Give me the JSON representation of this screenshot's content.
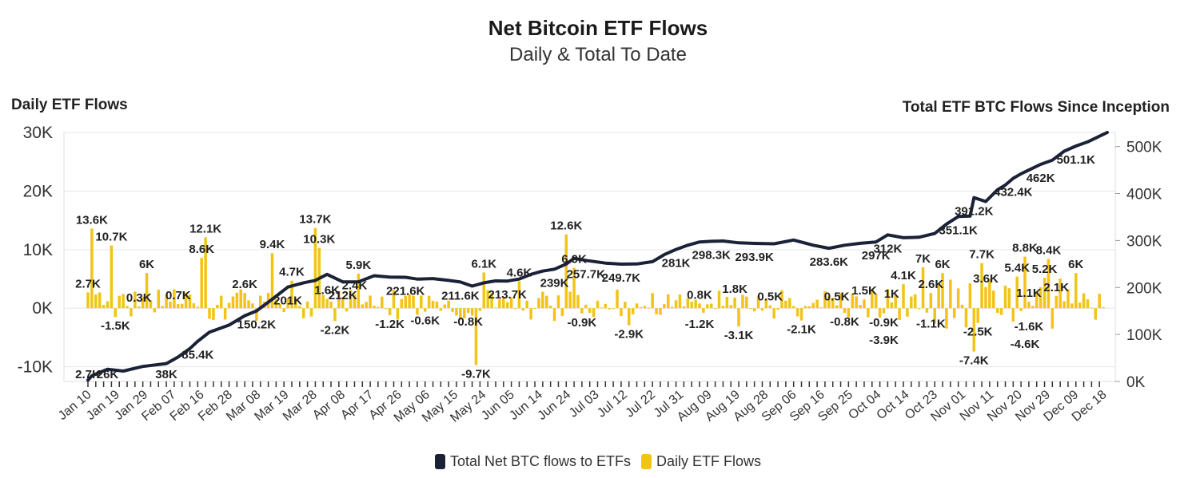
{
  "chart_data": {
    "type": "bar+line",
    "title": "Net Bitcoin ETF Flows",
    "subtitle": "Daily & Total To Date",
    "ylabel_left": "Daily ETF Flows",
    "ylabel_right": "Total ETF BTC Flows Since Inception",
    "y_left_ticks": [
      "30K",
      "20K",
      "10K",
      "0K",
      "-10K"
    ],
    "y_left_values": [
      30000,
      20000,
      10000,
      0,
      -10000
    ],
    "ylim_left": [
      -12500,
      30000
    ],
    "y_right_ticks": [
      "500K",
      "400K",
      "300K",
      "200K",
      "100K",
      "0K"
    ],
    "y_right_values": [
      500000,
      400000,
      300000,
      200000,
      100000,
      0
    ],
    "ylim_right": [
      0,
      530000
    ],
    "x_ticks": [
      "Jan 10",
      "Jan 19",
      "Jan 29",
      "Feb 07",
      "Feb 16",
      "Feb 28",
      "Mar 08",
      "Mar 19",
      "Mar 28",
      "Apr 08",
      "Apr 17",
      "Apr 26",
      "May 06",
      "May 15",
      "May 24",
      "Jun 05",
      "Jun 14",
      "Jun 24",
      "Jul 03",
      "Jul 12",
      "Jul 22",
      "Jul 31",
      "Aug 09",
      "Aug 19",
      "Aug 28",
      "Sep 06",
      "Sep 16",
      "Sep 25",
      "Oct 04",
      "Oct 14",
      "Oct 23",
      "Nov 01",
      "Nov 11",
      "Nov 20",
      "Nov 29",
      "Dec 09",
      "Dec 18"
    ],
    "n_days": 240,
    "series": [
      {
        "name": "Total Net BTC flows to ETFs",
        "color": "#1b2237",
        "axis": "right",
        "points": [
          [
            0,
            2700
          ],
          [
            1,
            12000
          ],
          [
            5,
            26000
          ],
          [
            9,
            22000
          ],
          [
            14,
            32000
          ],
          [
            20,
            38000
          ],
          [
            23,
            52000
          ],
          [
            26,
            70000
          ],
          [
            28,
            85400
          ],
          [
            31,
            105000
          ],
          [
            36,
            120000
          ],
          [
            40,
            140000
          ],
          [
            43,
            150200
          ],
          [
            47,
            175000
          ],
          [
            51,
            201000
          ],
          [
            55,
            210000
          ],
          [
            58,
            215000
          ],
          [
            61,
            228000
          ],
          [
            65,
            212000
          ],
          [
            69,
            212000
          ],
          [
            73,
            225000
          ],
          [
            77,
            222000
          ],
          [
            81,
            221600
          ],
          [
            84,
            218000
          ],
          [
            88,
            219000
          ],
          [
            92,
            215000
          ],
          [
            95,
            211600
          ],
          [
            98,
            203000
          ],
          [
            101,
            210000
          ],
          [
            104,
            214000
          ],
          [
            107,
            213700
          ],
          [
            110,
            218000
          ],
          [
            113,
            228000
          ],
          [
            116,
            235000
          ],
          [
            119,
            239000
          ],
          [
            122,
            250000
          ],
          [
            124,
            262000
          ],
          [
            127,
            257700
          ],
          [
            132,
            252000
          ],
          [
            136,
            249700
          ],
          [
            140,
            250000
          ],
          [
            144,
            255000
          ],
          [
            147,
            270000
          ],
          [
            150,
            281000
          ],
          [
            153,
            290000
          ],
          [
            156,
            297000
          ],
          [
            159,
            298300
          ],
          [
            162,
            299000
          ],
          [
            166,
            295000
          ],
          [
            170,
            293900
          ],
          [
            175,
            293000
          ],
          [
            180,
            301000
          ],
          [
            185,
            290000
          ],
          [
            189,
            283600
          ],
          [
            193,
            290000
          ],
          [
            197,
            294000
          ],
          [
            201,
            297000
          ],
          [
            204,
            312000
          ],
          [
            208,
            306000
          ],
          [
            212,
            307000
          ],
          [
            216,
            315000
          ],
          [
            219,
            335000
          ],
          [
            222,
            351100
          ],
          [
            225,
            352000
          ],
          [
            226,
            391200
          ],
          [
            229,
            383000
          ],
          [
            232,
            408000
          ],
          [
            234,
            418000
          ],
          [
            236,
            432400
          ],
          [
            238,
            442000
          ],
          [
            240,
            450000
          ],
          [
            243,
            462000
          ],
          [
            246,
            471000
          ],
          [
            249,
            490000
          ],
          [
            252,
            501100
          ],
          [
            255,
            510000
          ],
          [
            258,
            522000
          ],
          [
            260,
            530000
          ]
        ],
        "labels": [
          {
            "text": "2.7K",
            "i": 0
          },
          {
            "text": "26K",
            "i": 5
          },
          {
            "text": "38K",
            "i": 20
          },
          {
            "text": "85.4K",
            "i": 28
          },
          {
            "text": "150.2K",
            "i": 43
          },
          {
            "text": "201K",
            "i": 51
          },
          {
            "text": "212K",
            "i": 65
          },
          {
            "text": "221.6K",
            "i": 81
          },
          {
            "text": "211.6K",
            "i": 95
          },
          {
            "text": "213.7K",
            "i": 107
          },
          {
            "text": "239K",
            "i": 119
          },
          {
            "text": "257.7K",
            "i": 127
          },
          {
            "text": "249.7K",
            "i": 136
          },
          {
            "text": "281K",
            "i": 150
          },
          {
            "text": "298.3K",
            "i": 159
          },
          {
            "text": "293.9K",
            "i": 170
          },
          {
            "text": "283.6K",
            "i": 189
          },
          {
            "text": "297K",
            "i": 201
          },
          {
            "text": "312K",
            "i": 204
          },
          {
            "text": "351.1K",
            "i": 222
          },
          {
            "text": "391.2K",
            "i": 226
          },
          {
            "text": "432.4K",
            "i": 236
          },
          {
            "text": "462K",
            "i": 243
          },
          {
            "text": "501.1K",
            "i": 252
          }
        ]
      },
      {
        "name": "Daily ETF Flows",
        "color": "#f2c418",
        "axis": "left",
        "labels": [
          {
            "text": "2.7K",
            "value": 2700,
            "i": 0
          },
          {
            "text": "13.6K",
            "value": 13600,
            "i": 1
          },
          {
            "text": "10.7K",
            "value": 10700,
            "i": 6
          },
          {
            "text": "-1.5K",
            "value": -1500,
            "i": 7
          },
          {
            "text": "6K",
            "value": 6000,
            "i": 15
          },
          {
            "text": "0.3K",
            "value": 300,
            "i": 13
          },
          {
            "text": "0.7K",
            "value": 700,
            "i": 23
          },
          {
            "text": "8.6K",
            "value": 8600,
            "i": 29
          },
          {
            "text": "12.1K",
            "value": 12100,
            "i": 30
          },
          {
            "text": "2.6K",
            "value": 2600,
            "i": 40
          },
          {
            "text": "9.4K",
            "value": 9400,
            "i": 47
          },
          {
            "text": "4.7K",
            "value": 4700,
            "i": 52
          },
          {
            "text": "13.7K",
            "value": 13700,
            "i": 58
          },
          {
            "text": "10.3K",
            "value": 10300,
            "i": 59
          },
          {
            "text": "1.6K",
            "value": 1600,
            "i": 61
          },
          {
            "text": "-2.2K",
            "value": -2200,
            "i": 63
          },
          {
            "text": "5.9K",
            "value": 5900,
            "i": 69
          },
          {
            "text": "2.4K",
            "value": 2400,
            "i": 68
          },
          {
            "text": "-1.2K",
            "value": -1200,
            "i": 77
          },
          {
            "text": "-0.6K",
            "value": -600,
            "i": 86
          },
          {
            "text": "-0.8K",
            "value": -800,
            "i": 97
          },
          {
            "text": "-9.7K",
            "value": -9700,
            "i": 99
          },
          {
            "text": "6.1K",
            "value": 6100,
            "i": 101
          },
          {
            "text": "4.6K",
            "value": 4600,
            "i": 110
          },
          {
            "text": "12.6K",
            "value": 12600,
            "i": 122
          },
          {
            "text": "6.9K",
            "value": 6900,
            "i": 124
          },
          {
            "text": "-0.9K",
            "value": -900,
            "i": 126
          },
          {
            "text": "-2.9K",
            "value": -2900,
            "i": 138
          },
          {
            "text": "0.8K",
            "value": 800,
            "i": 156
          },
          {
            "text": "1.8K",
            "value": 1800,
            "i": 165
          },
          {
            "text": "-1.2K",
            "value": -1200,
            "i": 156
          },
          {
            "text": "-3.1K",
            "value": -3100,
            "i": 166
          },
          {
            "text": "0.5K",
            "value": 500,
            "i": 174
          },
          {
            "text": "-2.1K",
            "value": -2100,
            "i": 182
          },
          {
            "text": "0.5K",
            "value": 500,
            "i": 191
          },
          {
            "text": "-0.8K",
            "value": -800,
            "i": 193
          },
          {
            "text": "1.5K",
            "value": 1500,
            "i": 198
          },
          {
            "text": "1K",
            "value": 1000,
            "i": 205
          },
          {
            "text": "-0.9K",
            "value": -900,
            "i": 203
          },
          {
            "text": "-3.9K",
            "value": -3900,
            "i": 203
          },
          {
            "text": "4.1K",
            "value": 4100,
            "i": 208
          },
          {
            "text": "7K",
            "value": 7000,
            "i": 213
          },
          {
            "text": "6K",
            "value": 6000,
            "i": 218
          },
          {
            "text": "2.6K",
            "value": 2600,
            "i": 215
          },
          {
            "text": "-1.1K",
            "value": -1100,
            "i": 215
          },
          {
            "text": "7.7K",
            "value": 7700,
            "i": 228
          },
          {
            "text": "3.6K",
            "value": 3600,
            "i": 229
          },
          {
            "text": "-2.5K",
            "value": -2500,
            "i": 227
          },
          {
            "text": "-7.4K",
            "value": -7400,
            "i": 226
          },
          {
            "text": "8.8K",
            "value": 8800,
            "i": 239
          },
          {
            "text": "5.4K",
            "value": 5400,
            "i": 237
          },
          {
            "text": "1.1K",
            "value": 1100,
            "i": 240
          },
          {
            "text": "8.4K",
            "value": 8400,
            "i": 245
          },
          {
            "text": "5.2K",
            "value": 5200,
            "i": 244
          },
          {
            "text": "2.1K",
            "value": 2100,
            "i": 247
          },
          {
            "text": "6K",
            "value": 6000,
            "i": 252
          },
          {
            "text": "-1.6K",
            "value": -1600,
            "i": 240
          },
          {
            "text": "-4.6K",
            "value": -4600,
            "i": 239
          }
        ]
      }
    ],
    "legend": [
      {
        "label": "Total Net BTC flows to ETFs",
        "color": "#1b2237"
      },
      {
        "label": "Daily ETF Flows",
        "color": "#f2c418"
      }
    ]
  }
}
